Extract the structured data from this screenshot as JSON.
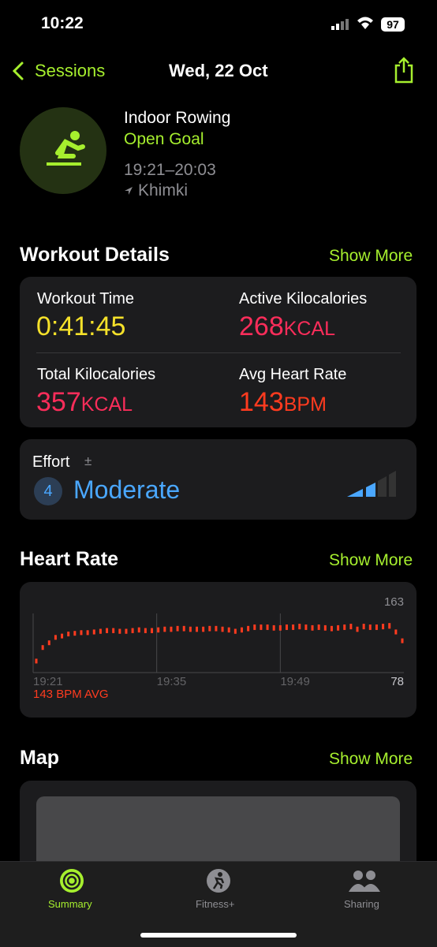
{
  "status_bar": {
    "time": "10:22",
    "battery": "97"
  },
  "nav": {
    "back": "Sessions",
    "title": "Wed, 22 Oct"
  },
  "workout": {
    "name": "Indoor Rowing",
    "goal": "Open Goal",
    "time_range": "19:21–20:03",
    "location": "Khimki"
  },
  "details": {
    "title": "Workout Details",
    "show_more": "Show More",
    "metrics": [
      {
        "label": "Workout Time",
        "value": "0:41:45"
      },
      {
        "label": "Active Kilocalories",
        "value": "268",
        "unit": "KCAL"
      },
      {
        "label": "Total Kilocalories",
        "value": "357",
        "unit": "KCAL"
      },
      {
        "label": "Avg Heart Rate",
        "value": "143",
        "unit": "BPM"
      }
    ]
  },
  "effort": {
    "label": "Effort",
    "symbol": "±",
    "level": "4",
    "description": "Moderate"
  },
  "heart_rate": {
    "title": "Heart Rate",
    "show_more": "Show More",
    "average": "143 BPM AVG",
    "chart_data": {
      "type": "bar",
      "color": "#ff3b1f",
      "values": [
        95,
        115,
        122,
        130,
        132,
        135,
        136,
        137,
        137,
        138,
        139,
        140,
        140,
        139,
        139,
        140,
        141,
        140,
        140,
        141,
        142,
        142,
        143,
        143,
        142,
        142,
        142,
        143,
        143,
        142,
        141,
        139,
        141,
        143,
        145,
        145,
        145,
        144,
        144,
        145,
        145,
        146,
        145,
        144,
        145,
        144,
        143,
        144,
        145,
        146,
        142,
        146,
        145,
        145,
        146,
        147,
        138,
        125
      ],
      "ylim": [
        78,
        163
      ],
      "yticks": [
        78,
        163
      ],
      "xlim": [
        0,
        42
      ],
      "xticks": [
        {
          "value": 0,
          "label": "19:21"
        },
        {
          "value": 14,
          "label": "19:35"
        },
        {
          "value": 28,
          "label": "19:49"
        }
      ]
    }
  },
  "map": {
    "title": "Map",
    "show_more": "Show More"
  },
  "tab_bar": {
    "tabs": [
      "Summary",
      "Fitness+",
      "Sharing"
    ]
  }
}
